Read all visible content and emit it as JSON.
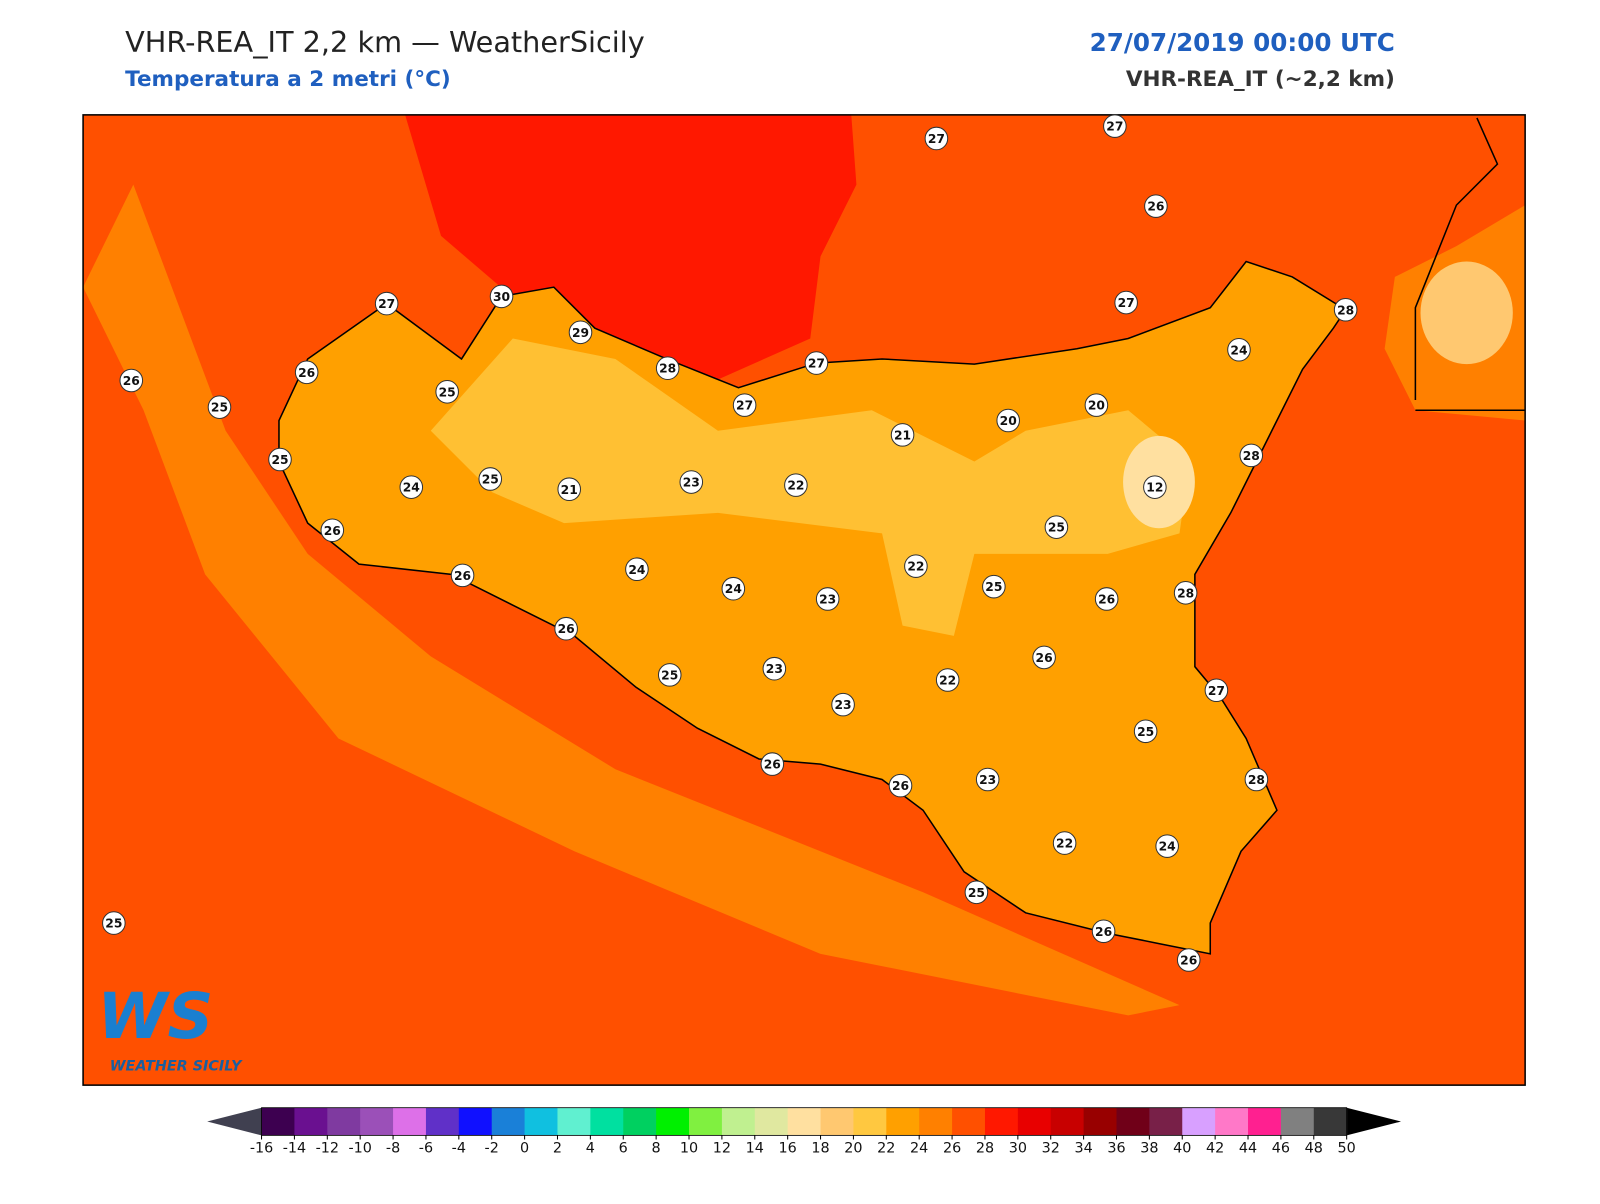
{
  "header": {
    "title": "VHR-REA_IT 2,2 km — WeatherSicily",
    "subtitle": "Temperatura a 2 metri (°C)",
    "datetime": "27/07/2019 00:00 UTC",
    "model": "VHR-REA_IT (~2,2 km)"
  },
  "logo": {
    "text": "WS",
    "caption": "WEATHER SICILY"
  },
  "stations": [
    27,
    27,
    26,
    27,
    30,
    29,
    27,
    28,
    24,
    26,
    26,
    25,
    25,
    28,
    27,
    27,
    20,
    20,
    21,
    28,
    25,
    24,
    25,
    21,
    23,
    22,
    12,
    26,
    25,
    26,
    24,
    22,
    24,
    23,
    25,
    26,
    28,
    26,
    26,
    25,
    23,
    22,
    27,
    23,
    25,
    26,
    26,
    23,
    28,
    22,
    24,
    25,
    25,
    26,
    26
  ],
  "colorbar": {
    "ticks": [
      -16,
      -14,
      -12,
      -10,
      -8,
      -6,
      -4,
      -2,
      0,
      2,
      4,
      6,
      8,
      10,
      12,
      14,
      16,
      18,
      20,
      22,
      24,
      26,
      28,
      30,
      32,
      34,
      36,
      38,
      40,
      42,
      44,
      46,
      48,
      50
    ],
    "colors": [
      "#3d0050",
      "#6a1090",
      "#7f3aa0",
      "#9b50b8",
      "#dd70e8",
      "#6030c8",
      "#1010ff",
      "#1a80d8",
      "#10c0e0",
      "#60f0d0",
      "#00e0a0",
      "#00d060",
      "#00f000",
      "#80f040",
      "#c0f090",
      "#e0e8a0",
      "#ffe0a0",
      "#ffc870",
      "#ffc840",
      "#ffa000",
      "#ff8000",
      "#ff5000",
      "#ff1800",
      "#e80000",
      "#c80000",
      "#980000",
      "#700018",
      "#782048",
      "#d8a0ff",
      "#ff78c8",
      "#ff2090",
      "#808080",
      "#383838"
    ],
    "under_color": "#404050",
    "over_color": "#000000"
  }
}
